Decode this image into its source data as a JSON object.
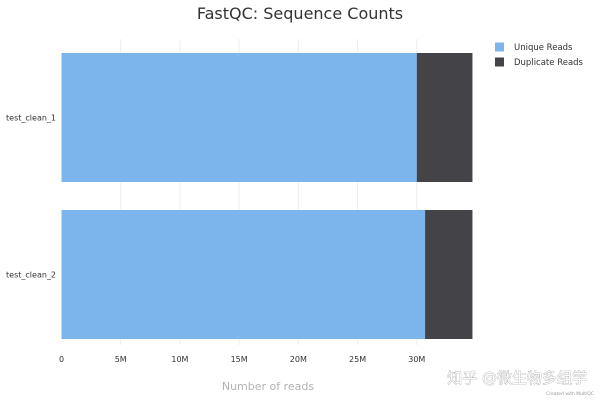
{
  "chart_data": {
    "type": "bar",
    "orientation": "horizontal",
    "stacked": true,
    "title": "FastQC: Sequence Counts",
    "xlabel": "Number of reads",
    "ylabel": "",
    "categories": [
      "test_clean_1",
      "test_clean_2"
    ],
    "series": [
      {
        "name": "Unique Reads",
        "values": [
          30000000,
          30700000
        ],
        "color": "#7cb5ec"
      },
      {
        "name": "Duplicate Reads",
        "values": [
          4700000,
          4000000
        ],
        "color": "#434348"
      }
    ],
    "xlim": [
      0,
      35000000
    ],
    "x_ticks": [
      0,
      5000000,
      10000000,
      15000000,
      20000000,
      25000000,
      30000000
    ],
    "x_tick_labels": [
      "0",
      "5M",
      "10M",
      "15M",
      "20M",
      "25M",
      "30M"
    ],
    "grid": true,
    "legend_position": "top-right"
  },
  "credit": "Created with MultiQC",
  "watermark": "知乎 @微生物多组学"
}
